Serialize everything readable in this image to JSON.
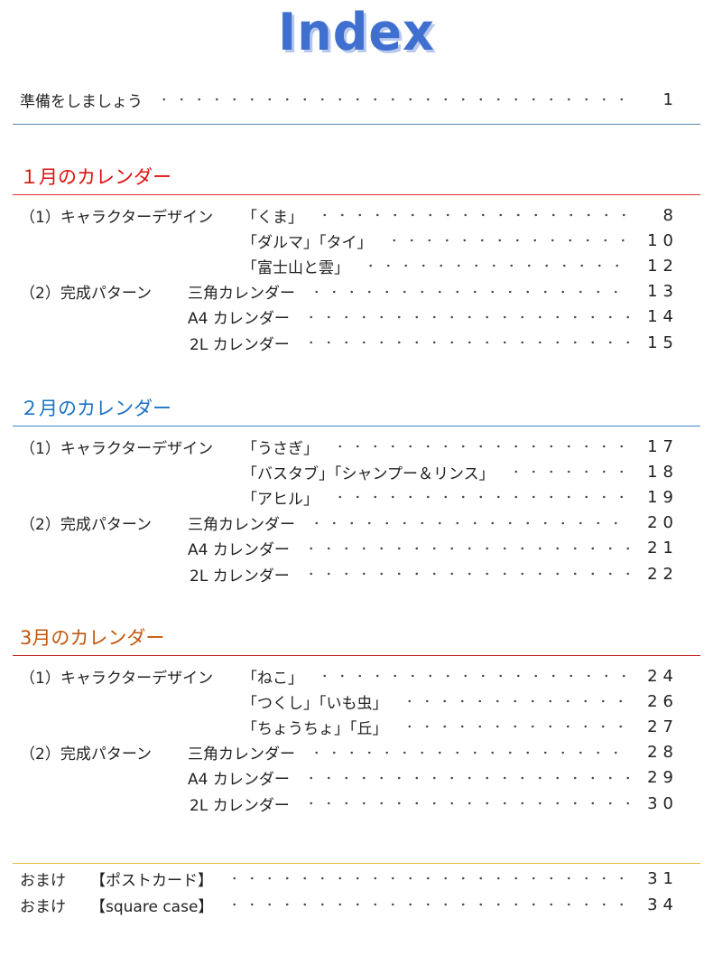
{
  "title": "Index",
  "intro": {
    "label": "準備をしましょう",
    "page": "1"
  },
  "sections": [
    {
      "heading": "１月のカレンダー",
      "color": "#e01010",
      "rule_color": "#e03030",
      "rows": [
        {
          "prefix": "（1）キャラクターデザイン",
          "group": "design",
          "label": "「くま」",
          "page": "8"
        },
        {
          "prefix": "",
          "group": "design",
          "label": "「ダルマ」「タイ」",
          "page": "10"
        },
        {
          "prefix": "",
          "group": "design",
          "label": "「富士山と雲」",
          "page": "12"
        },
        {
          "prefix": "（2）完成パターン",
          "group": "pattern",
          "label": "三角カレンダー",
          "page": "13"
        },
        {
          "prefix": "",
          "group": "pattern",
          "label": "A4 カレンダー",
          "page": "14"
        },
        {
          "prefix": "",
          "group": "pattern",
          "label": "2L カレンダー",
          "page": "15"
        }
      ]
    },
    {
      "heading": "２月のカレンダー",
      "color": "#1a72c4",
      "rule_color": "#3a86c8",
      "rows": [
        {
          "prefix": "（1）キャラクターデザイン",
          "group": "design",
          "label": "「うさぎ」",
          "page": "17"
        },
        {
          "prefix": "",
          "group": "design",
          "label": "「バスタブ」「シャンプー＆リンス」",
          "page": "18"
        },
        {
          "prefix": "",
          "group": "design",
          "label": "「アヒル」",
          "page": "19"
        },
        {
          "prefix": "（2）完成パターン",
          "group": "pattern",
          "label": "三角カレンダー",
          "page": "20"
        },
        {
          "prefix": "",
          "group": "pattern",
          "label": "A4 カレンダー",
          "page": "21"
        },
        {
          "prefix": "",
          "group": "pattern",
          "label": "2L カレンダー",
          "page": "22"
        }
      ]
    },
    {
      "heading": "3月のカレンダー",
      "color": "#c0580f",
      "rule_color": "#c02020",
      "rows": [
        {
          "prefix": "（1）キャラクターデザイン",
          "group": "design",
          "label": "「ねこ」",
          "page": "24"
        },
        {
          "prefix": "",
          "group": "design",
          "label": "「つくし」「いも虫」",
          "page": "26"
        },
        {
          "prefix": "",
          "group": "design",
          "label": "「ちょうちょ」「丘」",
          "page": "27"
        },
        {
          "prefix": "（2）完成パターン",
          "group": "pattern",
          "label": "三角カレンダー",
          "page": "28"
        },
        {
          "prefix": "",
          "group": "pattern",
          "label": "A4 カレンダー",
          "page": "29"
        },
        {
          "prefix": "",
          "group": "pattern",
          "label": "2L カレンダー",
          "page": "30"
        }
      ]
    }
  ],
  "extras": [
    {
      "prefix": "おまけ",
      "label": "【ポストカード】",
      "page": "31"
    },
    {
      "prefix": "おまけ",
      "label": "【square case】",
      "page": "34"
    }
  ]
}
